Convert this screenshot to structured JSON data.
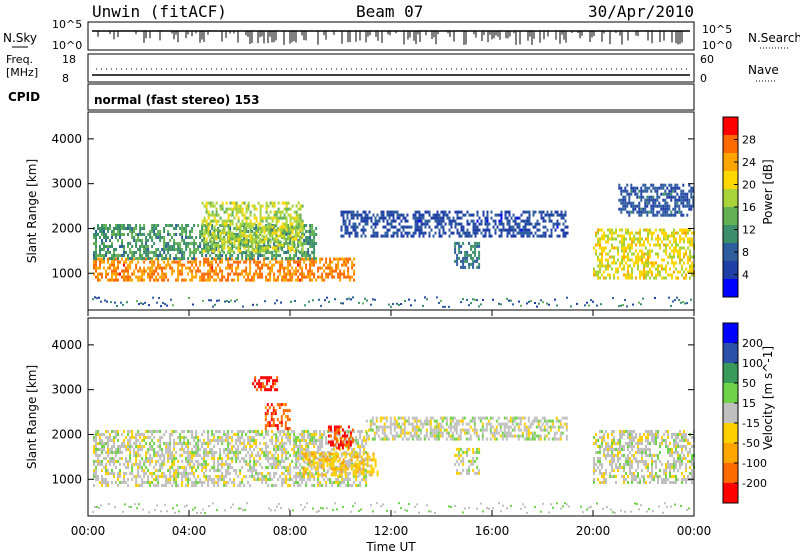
{
  "header": {
    "station": "Unwin (fitACF)",
    "beam": "Beam 07",
    "date": "30/Apr/2010"
  },
  "sky_panel": {
    "left_label": "N.Sky",
    "left_ticks": [
      "10^5",
      "10^0"
    ],
    "right_label": "N.Search",
    "right_ticks": [
      "10^5",
      "10^0"
    ]
  },
  "freq_panel": {
    "left_label_line1": "Freq.",
    "left_label_line2": "[MHz]",
    "left_ticks": [
      "18",
      "8"
    ],
    "right_label": "Nave",
    "right_ticks": [
      "60",
      "0"
    ]
  },
  "cpid_panel": {
    "label": "CPID",
    "value": "normal (fast stereo) 153"
  },
  "chart_data": [
    {
      "type": "heatmap",
      "title": "",
      "xlabel": "Time UT",
      "ylabel": "Slant Range [km]",
      "x_ticks": [
        "00:00",
        "04:00",
        "08:00",
        "12:00",
        "16:00",
        "20:00",
        "00:00"
      ],
      "xlim_hours": [
        0,
        24
      ],
      "y_ticks": [
        1000,
        2000,
        3000,
        4000
      ],
      "ylim": [
        180,
        4600
      ],
      "colorbar": {
        "label": "Power [dB]",
        "ticks": [
          "28",
          "24",
          "20",
          "16",
          "12",
          "8",
          "4"
        ],
        "range": [
          0,
          32
        ],
        "colors": [
          "#0000ff",
          "#1f3ea6",
          "#2f5e9e",
          "#3d8f6b",
          "#62b155",
          "#a8d43a",
          "#ffd700",
          "#ffa500",
          "#ff6a00",
          "#ff0000"
        ]
      },
      "regions": [
        {
          "t0": 0.2,
          "t1": 10.5,
          "r0": 850,
          "r1": 1350,
          "value": 26
        },
        {
          "t0": 0.2,
          "t1": 9.0,
          "r0": 1350,
          "r1": 2100,
          "value": 12
        },
        {
          "t0": 4.5,
          "t1": 8.5,
          "r0": 1500,
          "r1": 2600,
          "value": 18
        },
        {
          "t0": 10.0,
          "t1": 19.0,
          "r0": 1800,
          "r1": 2400,
          "value": 6
        },
        {
          "t0": 14.5,
          "t1": 15.5,
          "r0": 1100,
          "r1": 1700,
          "value": 10
        },
        {
          "t0": 20.0,
          "t1": 24.0,
          "r0": 900,
          "r1": 2000,
          "value": 20
        },
        {
          "t0": 21.0,
          "t1": 24.0,
          "r0": 2300,
          "r1": 3000,
          "value": 7
        }
      ]
    },
    {
      "type": "heatmap",
      "title": "",
      "xlabel": "Time UT",
      "ylabel": "Slant Range [km]",
      "x_ticks": [
        "00:00",
        "04:00",
        "08:00",
        "12:00",
        "16:00",
        "20:00",
        "00:00"
      ],
      "xlim_hours": [
        0,
        24
      ],
      "y_ticks": [
        1000,
        2000,
        3000,
        4000
      ],
      "ylim": [
        180,
        4600
      ],
      "colorbar": {
        "label": "Velocity [m s^-1]",
        "ticks": [
          "200",
          "100",
          "50",
          "15",
          "-15",
          "-50",
          "-100",
          "-200"
        ],
        "range": [
          -250,
          250
        ],
        "colors": [
          "#ff0000",
          "#ff6a00",
          "#ffa500",
          "#ffd000",
          "#c0c0c0",
          "#6fd44a",
          "#3a9a5a",
          "#2a50a8",
          "#0000ff"
        ]
      },
      "regions": [
        {
          "t0": 0.2,
          "t1": 11.0,
          "r0": 850,
          "r1": 2100,
          "value": 0
        },
        {
          "t0": 6.5,
          "t1": 7.5,
          "r0": 3000,
          "r1": 3300,
          "value": -220
        },
        {
          "t0": 7.0,
          "t1": 8.0,
          "r0": 2100,
          "r1": 2700,
          "value": -180
        },
        {
          "t0": 9.5,
          "t1": 10.5,
          "r0": 1700,
          "r1": 2200,
          "value": -200
        },
        {
          "t0": 8.5,
          "t1": 11.5,
          "r0": 1100,
          "r1": 1600,
          "value": -60
        },
        {
          "t0": 11.0,
          "t1": 19.0,
          "r0": 1900,
          "r1": 2400,
          "value": 0
        },
        {
          "t0": 14.5,
          "t1": 15.5,
          "r0": 1100,
          "r1": 1700,
          "value": 0
        },
        {
          "t0": 20.0,
          "t1": 24.0,
          "r0": 900,
          "r1": 2100,
          "value": 0
        }
      ]
    }
  ]
}
